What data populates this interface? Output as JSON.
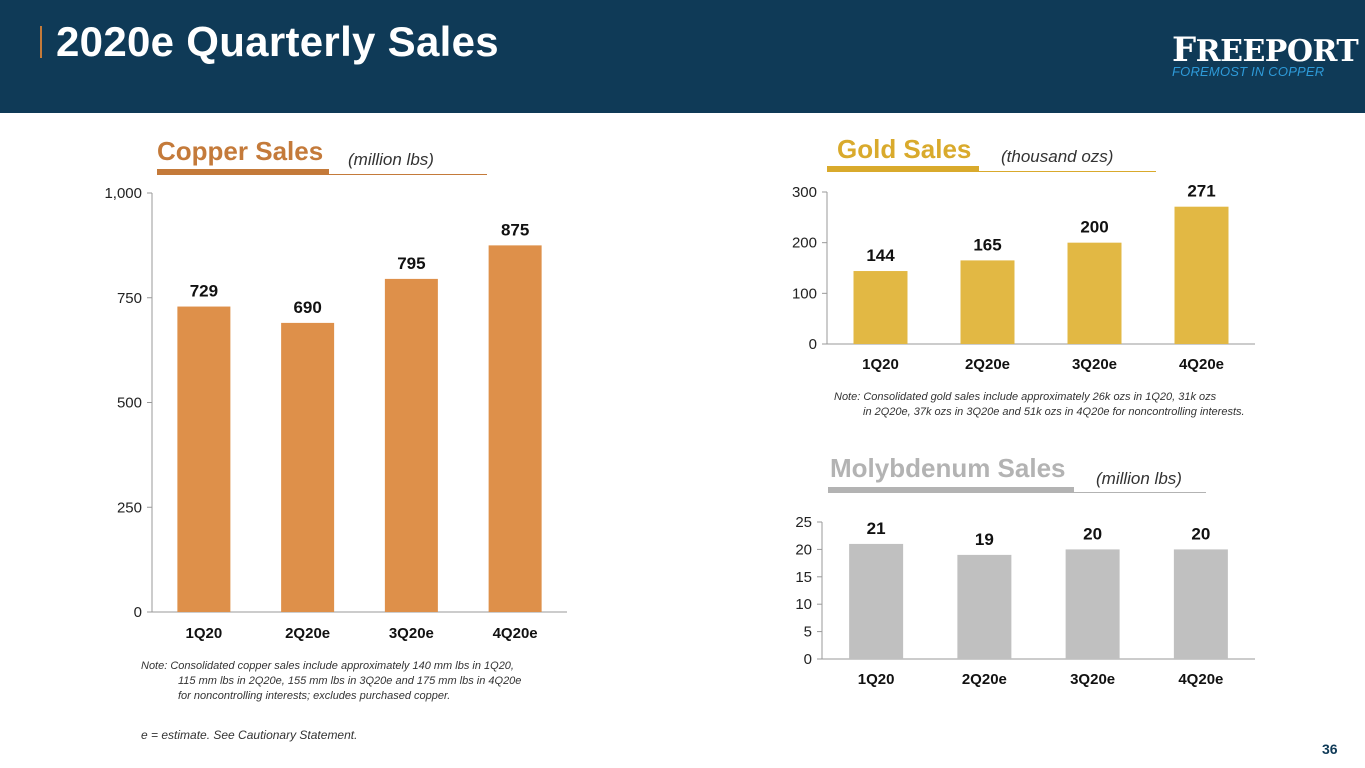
{
  "header": {
    "title": "2020e Quarterly Sales",
    "logo_name_first": "F",
    "logo_name_rest": "REEPORT",
    "logo_tagline": "FOREMOST IN COPPER"
  },
  "copper": {
    "title": "Copper Sales",
    "unit": "(million lbs)",
    "note_line1": "Note:  Consolidated copper sales include approximately 140 mm lbs in 1Q20,",
    "note_line2": "115 mm lbs in 2Q20e, 155 mm lbs in 3Q20e and 175 mm lbs in 4Q20e",
    "note_line3": "for noncontrolling interests; excludes purchased copper."
  },
  "gold": {
    "title": "Gold Sales",
    "unit": "(thousand ozs)",
    "note_line1": "Note:  Consolidated gold sales include approximately 26k ozs in 1Q20, 31k ozs",
    "note_line2": "in 2Q20e, 37k ozs in 3Q20e and 51k ozs in 4Q20e for noncontrolling interests."
  },
  "moly": {
    "title": "Molybdenum  Sales",
    "unit": "(million lbs)"
  },
  "footnote": "e = estimate. See Cautionary Statement.",
  "page_number": "36",
  "colors": {
    "header_bg": "#0f3a57",
    "copper": "#de904a",
    "copper_title": "#c47a3a",
    "gold": "#e2b844",
    "gold_title": "#d9aa2c",
    "moly": "#c0c0c0",
    "moly_title": "#b3b3b3",
    "logo_tagline": "#2e9ad8"
  },
  "chart_data": [
    {
      "id": "copper",
      "type": "bar",
      "categories": [
        "1Q20",
        "2Q20e",
        "3Q20e",
        "4Q20e"
      ],
      "values": [
        729,
        690,
        795,
        875
      ],
      "value_labels": [
        "729",
        "690",
        "795",
        "875"
      ],
      "ylim": [
        0,
        1000
      ],
      "yticks": [
        0,
        250,
        500,
        750,
        1000
      ],
      "ytick_labels": [
        "0",
        "250",
        "500",
        "750",
        "1,000"
      ],
      "grid": false
    },
    {
      "id": "gold",
      "type": "bar",
      "categories": [
        "1Q20",
        "2Q20e",
        "3Q20e",
        "4Q20e"
      ],
      "values": [
        144,
        165,
        200,
        271
      ],
      "value_labels": [
        "144",
        "165",
        "200",
        "271"
      ],
      "ylim": [
        0,
        300
      ],
      "yticks": [
        0,
        100,
        200,
        300
      ],
      "ytick_labels": [
        "0",
        "100",
        "200",
        "300"
      ],
      "grid": false
    },
    {
      "id": "moly",
      "type": "bar",
      "categories": [
        "1Q20",
        "2Q20e",
        "3Q20e",
        "4Q20e"
      ],
      "values": [
        21,
        19,
        20,
        20
      ],
      "value_labels": [
        "21",
        "19",
        "20",
        "20"
      ],
      "ylim": [
        0,
        25
      ],
      "yticks": [
        0,
        5,
        10,
        15,
        20,
        25
      ],
      "ytick_labels": [
        "0",
        "5",
        "10",
        "15",
        "20",
        "25"
      ],
      "grid": false
    }
  ]
}
